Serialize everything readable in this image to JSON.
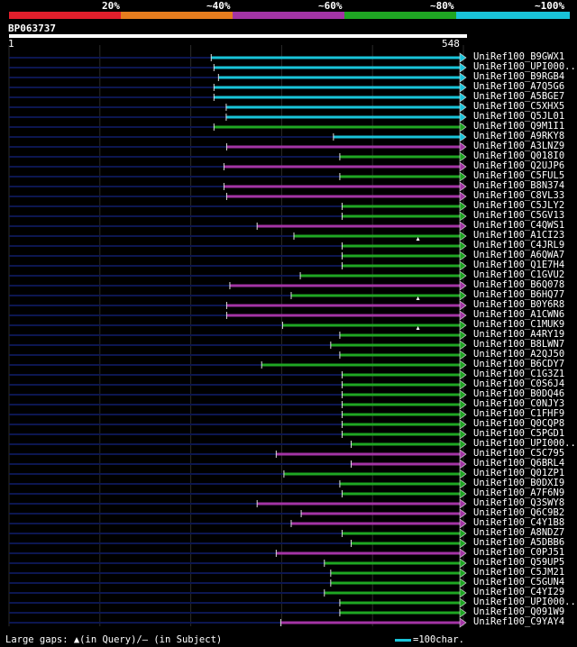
{
  "header": {
    "percent_labels": [
      "20%",
      "~40%",
      "~60%",
      "~80%",
      "~100%"
    ],
    "segment_colors": [
      "#e01f2c",
      "#e67d1e",
      "#a334a5",
      "#1fa623",
      "#19c3d8"
    ],
    "query_id": "BP063737",
    "query_start": "1",
    "query_end": "548"
  },
  "legend": {
    "gaps_text": "Large gaps: ▲(in Query)/– (in Subject)",
    "scale_text": "=100char."
  },
  "colors": {
    "cyan": "#19c3d8",
    "purple": "#a334a5",
    "green": "#1fa623",
    "nohit": "#0c1650",
    "gridline": "#2a2a2a"
  },
  "hits": [
    {
      "name": "UniRef100_B9GWX1",
      "color": "cyan",
      "start": 0.445,
      "tri": false
    },
    {
      "name": "UniRef100_UPI000..",
      "color": "cyan",
      "start": 0.451,
      "tri": false
    },
    {
      "name": "UniRef100_B9RGB4",
      "color": "cyan",
      "start": 0.461,
      "tri": false
    },
    {
      "name": "UniRef100_A7Q5G6",
      "color": "cyan",
      "start": 0.451,
      "tri": false
    },
    {
      "name": "UniRef100_A5BGE7",
      "color": "cyan",
      "start": 0.451,
      "tri": false
    },
    {
      "name": "UniRef100_C5XHX5",
      "color": "cyan",
      "start": 0.478,
      "tri": false
    },
    {
      "name": "UniRef100_Q5JL01",
      "color": "cyan",
      "start": 0.478,
      "tri": false
    },
    {
      "name": "UniRef100_Q9M1I1",
      "color": "green",
      "start": 0.451,
      "tri": false
    },
    {
      "name": "UniRef100_A9RKY8",
      "color": "cyan",
      "start": 0.714,
      "tri": false
    },
    {
      "name": "UniRef100_A3LNZ9",
      "color": "purple",
      "start": 0.479,
      "tri": false
    },
    {
      "name": "UniRef100_Q018I0",
      "color": "green",
      "start": 0.728,
      "tri": false
    },
    {
      "name": "UniRef100_Q2UJP6",
      "color": "purple",
      "start": 0.473,
      "tri": false
    },
    {
      "name": "UniRef100_C5FUL5",
      "color": "green",
      "start": 0.728,
      "tri": false
    },
    {
      "name": "UniRef100_B8N374",
      "color": "purple",
      "start": 0.473,
      "tri": false
    },
    {
      "name": "UniRef100_C8VL33",
      "color": "purple",
      "start": 0.479,
      "tri": false
    },
    {
      "name": "UniRef100_C5JLY2",
      "color": "green",
      "start": 0.733,
      "tri": false
    },
    {
      "name": "UniRef100_C5GV13",
      "color": "green",
      "start": 0.733,
      "tri": false
    },
    {
      "name": "UniRef100_C4QWS1",
      "color": "purple",
      "start": 0.546,
      "tri": false
    },
    {
      "name": "UniRef100_A1CI23",
      "color": "green",
      "start": 0.627,
      "tri": true
    },
    {
      "name": "UniRef100_C4JRL9",
      "color": "green",
      "start": 0.733,
      "tri": false
    },
    {
      "name": "UniRef100_A6QWA7",
      "color": "green",
      "start": 0.733,
      "tri": false
    },
    {
      "name": "UniRef100_Q1E7H4",
      "color": "green",
      "start": 0.733,
      "tri": false
    },
    {
      "name": "UniRef100_C1GVU2",
      "color": "green",
      "start": 0.641,
      "tri": false
    },
    {
      "name": "UniRef100_B6Q078",
      "color": "purple",
      "start": 0.486,
      "tri": false
    },
    {
      "name": "UniRef100_B6HQ77",
      "color": "green",
      "start": 0.621,
      "tri": true
    },
    {
      "name": "UniRef100_B0Y6R8",
      "color": "purple",
      "start": 0.479,
      "tri": false
    },
    {
      "name": "UniRef100_A1CWN6",
      "color": "purple",
      "start": 0.479,
      "tri": false
    },
    {
      "name": "UniRef100_C1MUK9",
      "color": "green",
      "start": 0.602,
      "tri": true
    },
    {
      "name": "UniRef100_A4RY19",
      "color": "green",
      "start": 0.728,
      "tri": false
    },
    {
      "name": "UniRef100_B8LWN7",
      "color": "green",
      "start": 0.708,
      "tri": false
    },
    {
      "name": "UniRef100_A2QJ50",
      "color": "green",
      "start": 0.728,
      "tri": false
    },
    {
      "name": "UniRef100_B6CDY7",
      "color": "green",
      "start": 0.556,
      "tri": false
    },
    {
      "name": "UniRef100_C1G3Z1",
      "color": "green",
      "start": 0.733,
      "tri": false
    },
    {
      "name": "UniRef100_C0S6J4",
      "color": "green",
      "start": 0.733,
      "tri": false
    },
    {
      "name": "UniRef100_B0DQ46",
      "color": "green",
      "start": 0.733,
      "tri": false
    },
    {
      "name": "UniRef100_C0NJY3",
      "color": "green",
      "start": 0.733,
      "tri": false
    },
    {
      "name": "UniRef100_C1FHF9",
      "color": "green",
      "start": 0.733,
      "tri": false
    },
    {
      "name": "UniRef100_Q0CQP8",
      "color": "green",
      "start": 0.733,
      "tri": false
    },
    {
      "name": "UniRef100_C5PGD1",
      "color": "green",
      "start": 0.733,
      "tri": false
    },
    {
      "name": "UniRef100_UPI000..",
      "color": "green",
      "start": 0.753,
      "tri": false
    },
    {
      "name": "UniRef100_C5C795",
      "color": "purple",
      "start": 0.588,
      "tri": false
    },
    {
      "name": "UniRef100_Q6BRL4",
      "color": "purple",
      "start": 0.753,
      "tri": false
    },
    {
      "name": "UniRef100_Q01ZP1",
      "color": "green",
      "start": 0.605,
      "tri": false
    },
    {
      "name": "UniRef100_B0DXI9",
      "color": "green",
      "start": 0.728,
      "tri": false
    },
    {
      "name": "UniRef100_A7F6N9",
      "color": "green",
      "start": 0.733,
      "tri": false
    },
    {
      "name": "UniRef100_Q3SWY8",
      "color": "purple",
      "start": 0.546,
      "tri": false
    },
    {
      "name": "UniRef100_Q6C9B2",
      "color": "purple",
      "start": 0.643,
      "tri": false
    },
    {
      "name": "UniRef100_C4Y1B8",
      "color": "purple",
      "start": 0.621,
      "tri": false
    },
    {
      "name": "UniRef100_A8NDZ7",
      "color": "green",
      "start": 0.733,
      "tri": false
    },
    {
      "name": "UniRef100_A5DBB6",
      "color": "green",
      "start": 0.753,
      "tri": false
    },
    {
      "name": "UniRef100_C0PJ51",
      "color": "purple",
      "start": 0.588,
      "tri": false
    },
    {
      "name": "UniRef100_Q59UP5",
      "color": "green",
      "start": 0.694,
      "tri": false
    },
    {
      "name": "UniRef100_C5JM21",
      "color": "green",
      "start": 0.708,
      "tri": false
    },
    {
      "name": "UniRef100_C5GUN4",
      "color": "green",
      "start": 0.708,
      "tri": false
    },
    {
      "name": "UniRef100_C4YI29",
      "color": "green",
      "start": 0.694,
      "tri": false
    },
    {
      "name": "UniRef100_UPI000..",
      "color": "green",
      "start": 0.728,
      "tri": false
    },
    {
      "name": "UniRef100_Q091W9",
      "color": "green",
      "start": 0.728,
      "tri": false
    },
    {
      "name": "UniRef100_C9YAY4",
      "color": "purple",
      "start": 0.598,
      "tri": false
    }
  ]
}
